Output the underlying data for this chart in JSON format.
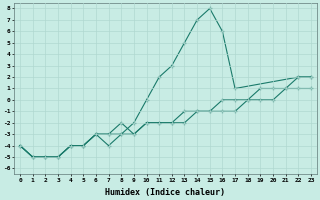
{
  "title": "",
  "xlabel": "Humidex (Indice chaleur)",
  "bg_color": "#c8ece4",
  "grid_color": "#b0d8d0",
  "line_color": "#1a7a6a",
  "xlim": [
    -0.5,
    23.5
  ],
  "ylim": [
    -6.5,
    8.5
  ],
  "xtick_vals": [
    0,
    1,
    2,
    3,
    4,
    5,
    6,
    7,
    8,
    9,
    10,
    11,
    12,
    13,
    14,
    15,
    16,
    17,
    18,
    19,
    20,
    21,
    22,
    23
  ],
  "ytick_vals": [
    -6,
    -5,
    -4,
    -3,
    -2,
    -1,
    0,
    1,
    2,
    3,
    4,
    5,
    6,
    7,
    8
  ],
  "series": [
    {
      "x": [
        0,
        1,
        2,
        3,
        4,
        5,
        6,
        7,
        8,
        9,
        10,
        11,
        12,
        13,
        14,
        15,
        16,
        17,
        22,
        23
      ],
      "y": [
        -4,
        -5,
        -5,
        -5,
        -4,
        -4,
        -3,
        -4,
        -3,
        -2,
        0,
        2,
        3,
        5,
        7,
        8,
        6,
        1,
        2,
        2
      ]
    },
    {
      "x": [
        0,
        1,
        2,
        3,
        4,
        5,
        6,
        7,
        8,
        9,
        10,
        11,
        12,
        13,
        14,
        15,
        16,
        17,
        18,
        19,
        20,
        21,
        22,
        23
      ],
      "y": [
        -4,
        -5,
        -5,
        -5,
        -4,
        -4,
        -3,
        -3,
        -2,
        -3,
        -2,
        -2,
        -2,
        -1,
        -1,
        -1,
        0,
        0,
        0,
        1,
        1,
        1,
        2,
        2
      ]
    },
    {
      "x": [
        0,
        1,
        2,
        3,
        4,
        5,
        6,
        7,
        8,
        9,
        10,
        11,
        12,
        13,
        14,
        15,
        16,
        17,
        18,
        19,
        20,
        21,
        22,
        23
      ],
      "y": [
        -4,
        -5,
        -5,
        -5,
        -4,
        -4,
        -3,
        -3,
        -3,
        -3,
        -2,
        -2,
        -2,
        -2,
        -1,
        -1,
        -1,
        -1,
        0,
        0,
        0,
        1,
        1,
        1
      ]
    }
  ]
}
